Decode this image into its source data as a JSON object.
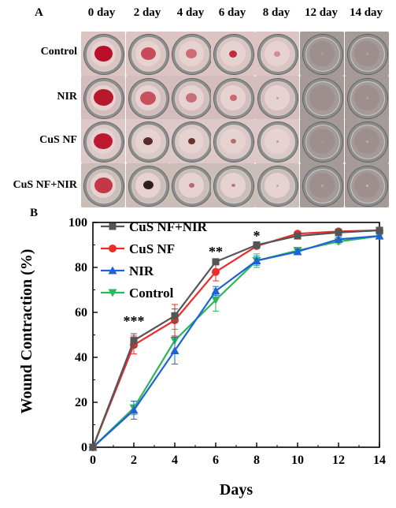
{
  "panel_a": {
    "label": "A",
    "days": [
      "0 day",
      "2 day",
      "4 day",
      "6 day",
      "8 day",
      "12 day",
      "14 day"
    ],
    "groups": [
      "Control",
      "NIR",
      "CuS NF",
      "CuS NF+NIR"
    ]
  },
  "panel_b": {
    "label": "B"
  },
  "colors": {
    "cus_nf_nir": "#555555",
    "cus_nf": "#ee2b2b",
    "nir": "#1e63d6",
    "control": "#2fb55a"
  },
  "chart_data": {
    "type": "line",
    "x": [
      0,
      2,
      4,
      6,
      8,
      10,
      12,
      14
    ],
    "xlabel": "Days",
    "ylabel": "Wound Contraction (%)",
    "xlim": [
      0,
      14
    ],
    "ylim": [
      0,
      100
    ],
    "xticks": [
      "0",
      "2",
      "4",
      "6",
      "8",
      "10",
      "12",
      "14"
    ],
    "yticks": [
      "0",
      "20",
      "40",
      "60",
      "80",
      "100"
    ],
    "legend_position": "top-left",
    "series": [
      {
        "name": "CuS NF+NIR",
        "marker": "square",
        "color": "#555555",
        "values": [
          0,
          47.5,
          58.5,
          82.5,
          90,
          94,
          95.5,
          96.5
        ],
        "errors": [
          0,
          3,
          3,
          1,
          1,
          1,
          1,
          1
        ]
      },
      {
        "name": "CuS NF",
        "marker": "circle",
        "color": "#ee2b2b",
        "values": [
          0,
          45.5,
          56.5,
          78,
          89.5,
          95,
          96,
          96.5
        ],
        "errors": [
          0,
          4,
          7,
          4,
          1,
          1,
          1,
          1
        ]
      },
      {
        "name": "NIR",
        "marker": "triangle-up",
        "color": "#1e63d6",
        "values": [
          0,
          16.5,
          43,
          69.5,
          83,
          87,
          92.5,
          94
        ],
        "errors": [
          0,
          4,
          6,
          2,
          2,
          1,
          1,
          1
        ]
      },
      {
        "name": "Control",
        "marker": "triangle-down",
        "color": "#2fb55a",
        "values": [
          0,
          17.5,
          47.5,
          65.5,
          83,
          87.5,
          91.5,
          94
        ],
        "errors": [
          0,
          3,
          5,
          5,
          3,
          1,
          1,
          1
        ]
      }
    ],
    "annotations": [
      {
        "x": 2,
        "y": 54,
        "text": "***"
      },
      {
        "x": 6,
        "y": 85,
        "text": "**"
      },
      {
        "x": 8,
        "y": 92,
        "text": "*"
      }
    ]
  }
}
